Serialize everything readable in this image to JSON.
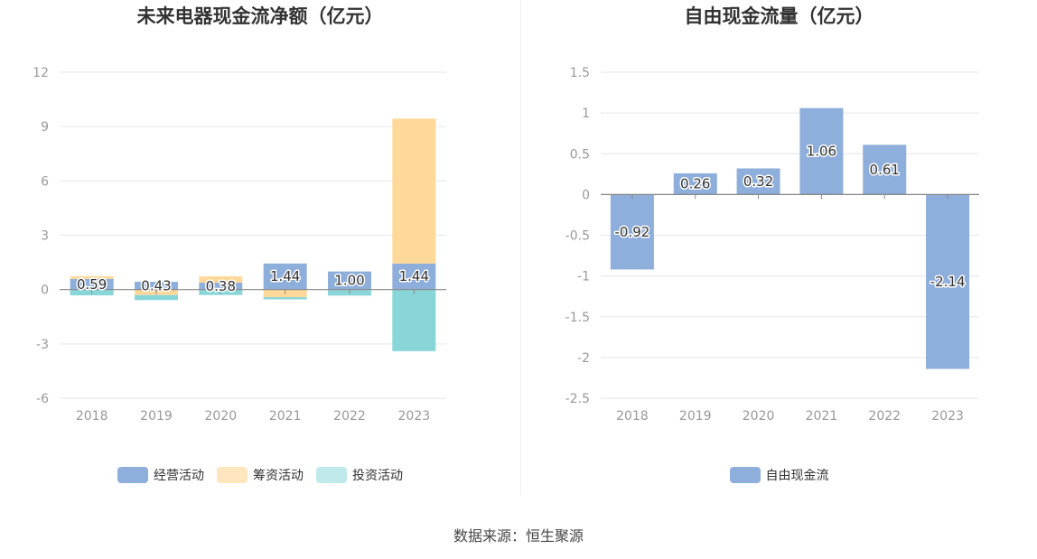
{
  "colors": {
    "operating": "#8eaedb",
    "financing": "#ffd89a",
    "investing": "#88d6d8",
    "investing_legend": "#bfe9ea",
    "financing_legend": "#ffe6bf",
    "freecash": "#8eaedb",
    "grid": "#e6e6ee",
    "zero_axis": "#888888"
  },
  "left": {
    "title": "未来电器现金流净额（亿元）",
    "legend": [
      {
        "label": "经营活动",
        "icon": "legend-swatch"
      },
      {
        "label": "筹资活动",
        "icon": "legend-swatch"
      },
      {
        "label": "投资活动",
        "icon": "legend-swatch"
      }
    ]
  },
  "right": {
    "title": "自由现金流量（亿元）",
    "legend": [
      {
        "label": "自由现金流",
        "icon": "legend-swatch"
      }
    ]
  },
  "source": "数据来源：恒生聚源",
  "chart_data": [
    {
      "type": "bar",
      "stacked": true,
      "title": "未来电器现金流净额（亿元）",
      "categories": [
        "2018",
        "2019",
        "2020",
        "2021",
        "2022",
        "2023"
      ],
      "ylim": [
        -6,
        12
      ],
      "yticks": [
        12,
        9,
        6,
        3,
        0,
        -3,
        -6
      ],
      "grid": true,
      "legend_position": "bottom",
      "series": [
        {
          "name": "经营活动",
          "values": [
            0.59,
            0.43,
            0.38,
            1.44,
            1.0,
            1.44
          ]
        },
        {
          "name": "筹资活动",
          "values": [
            0.15,
            -0.3,
            0.35,
            -0.42,
            -0.03,
            8.0
          ]
        },
        {
          "name": "投资活动",
          "values": [
            -0.32,
            -0.28,
            -0.3,
            -0.12,
            -0.3,
            -3.4
          ]
        }
      ],
      "data_labels": [
        "0.59",
        "0.43",
        "0.38",
        "1.44",
        "1.00",
        "1.44"
      ]
    },
    {
      "type": "bar",
      "title": "自由现金流量（亿元）",
      "categories": [
        "2018",
        "2019",
        "2020",
        "2021",
        "2022",
        "2023"
      ],
      "ylim": [
        -2.5,
        1.5
      ],
      "yticks": [
        1.5,
        1,
        0.5,
        0,
        -0.5,
        -1,
        -1.5,
        -2,
        -2.5
      ],
      "ytick_labels": [
        "1.5",
        "1",
        "0.5",
        "0",
        "-0.5",
        "-1",
        "-1.5",
        "-2",
        "-2.5"
      ],
      "grid": true,
      "legend_position": "bottom",
      "series": [
        {
          "name": "自由现金流",
          "values": [
            -0.92,
            0.26,
            0.32,
            1.06,
            0.61,
            -2.14
          ]
        }
      ],
      "data_labels": [
        "-0.92",
        "0.26",
        "0.32",
        "1.06",
        "0.61",
        "-2.14"
      ]
    }
  ]
}
